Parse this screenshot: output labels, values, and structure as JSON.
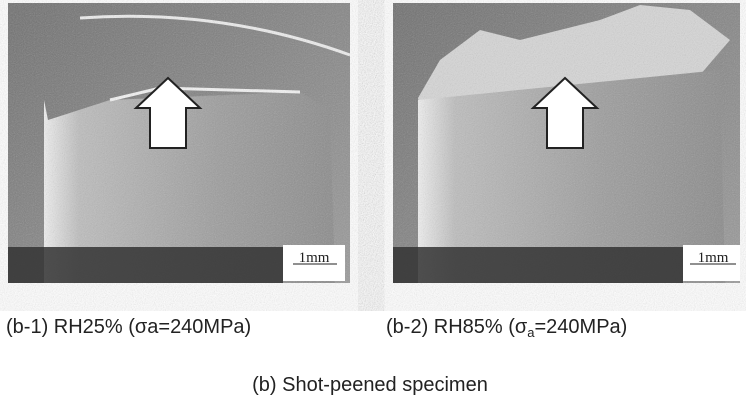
{
  "panels": [
    {
      "scale_label": "1mm",
      "caption": "(b-1) RH25%  (σa=240MPa)"
    },
    {
      "scale_label": "1mm",
      "caption_parts": [
        "(b-2) RH85%  (σ",
        "a",
        "=240MPa)"
      ]
    }
  ],
  "figure_caption": "(b) Shot-peened specimen"
}
